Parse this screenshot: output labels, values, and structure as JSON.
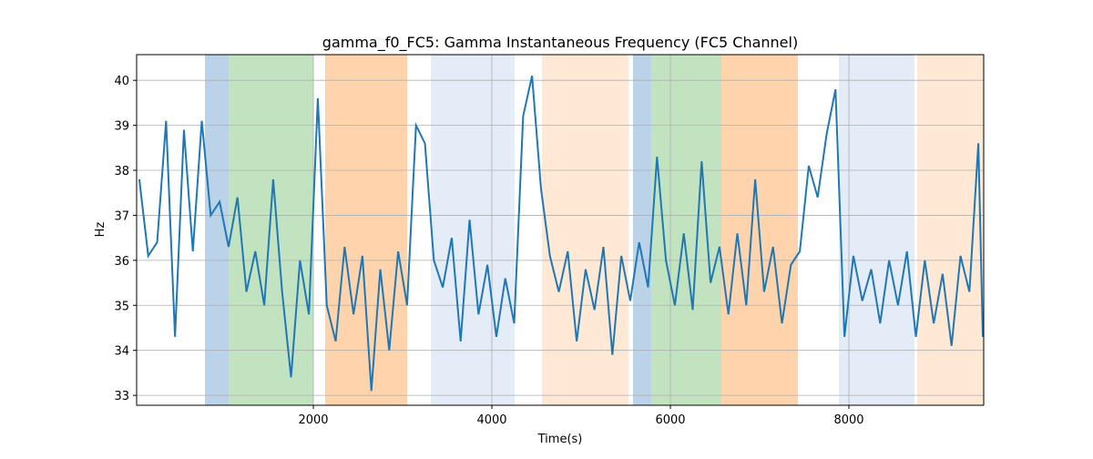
{
  "chart_data": {
    "type": "line",
    "title": "gamma_f0_FC5: Gamma Instantaneous Frequency (FC5 Channel)",
    "xlabel": "Time(s)",
    "ylabel": "Hz",
    "x": [
      50,
      150,
      250,
      350,
      450,
      550,
      650,
      750,
      850,
      950,
      1050,
      1150,
      1250,
      1350,
      1450,
      1550,
      1650,
      1750,
      1850,
      1950,
      2050,
      2150,
      2250,
      2350,
      2450,
      2550,
      2650,
      2750,
      2850,
      2950,
      3050,
      3150,
      3250,
      3350,
      3450,
      3550,
      3650,
      3750,
      3850,
      3950,
      4050,
      4150,
      4250,
      4350,
      4450,
      4550,
      4650,
      4750,
      4850,
      4950,
      5050,
      5150,
      5250,
      5350,
      5450,
      5550,
      5650,
      5750,
      5850,
      5950,
      6050,
      6150,
      6250,
      6350,
      6450,
      6550,
      6650,
      6750,
      6850,
      6950,
      7050,
      7150,
      7250,
      7350,
      7450,
      7550,
      7650,
      7750,
      7850,
      7950,
      8050,
      8150,
      8250,
      8350,
      8450,
      8550,
      8650,
      8750,
      8850,
      8950,
      9050,
      9150,
      9250,
      9350,
      9450,
      9500
    ],
    "series": [
      {
        "name": "gamma_f0_FC5",
        "color": "#1f77b4",
        "values": [
          37.8,
          36.1,
          36.4,
          39.1,
          34.3,
          38.9,
          36.2,
          39.1,
          37.0,
          37.3,
          36.3,
          37.4,
          35.3,
          36.2,
          35.0,
          37.8,
          35.3,
          33.4,
          36.0,
          34.8,
          39.6,
          35.0,
          34.2,
          36.3,
          34.8,
          36.1,
          33.1,
          35.8,
          34.0,
          36.2,
          35.0,
          39.0,
          38.6,
          36.0,
          35.4,
          36.5,
          34.2,
          36.9,
          34.8,
          35.9,
          34.3,
          35.6,
          34.6,
          39.2,
          40.1,
          37.6,
          36.1,
          35.3,
          36.2,
          34.2,
          35.8,
          34.9,
          36.3,
          33.9,
          36.1,
          35.1,
          36.4,
          35.4,
          38.3,
          36.0,
          35.0,
          36.6,
          34.9,
          38.2,
          35.5,
          36.3,
          34.8,
          36.6,
          35.0,
          37.8,
          35.3,
          36.3,
          34.6,
          35.9,
          36.2,
          38.1,
          37.4,
          38.8,
          39.8,
          34.3,
          36.1,
          35.1,
          35.8,
          34.6,
          36.0,
          35.0,
          36.2,
          34.3,
          36.0,
          34.6,
          35.7,
          34.1,
          36.1,
          35.3,
          38.6,
          34.3
        ]
      }
    ],
    "spans": [
      {
        "start": 785,
        "end": 1051,
        "color": "#bad3e9"
      },
      {
        "start": 1051,
        "end": 2000,
        "color": "#c1e3c0"
      },
      {
        "start": 2132,
        "end": 3050,
        "color": "#ffd4ad"
      },
      {
        "start": 3316,
        "end": 4255,
        "color": "#e4ecf7"
      },
      {
        "start": 4561,
        "end": 5530,
        "color": "#ffe9d4"
      },
      {
        "start": 5581,
        "end": 5785,
        "color": "#bad3e9"
      },
      {
        "start": 5785,
        "end": 6571,
        "color": "#c1e3c0"
      },
      {
        "start": 6571,
        "end": 7428,
        "color": "#ffd4ad"
      },
      {
        "start": 7887,
        "end": 8734,
        "color": "#e4ecf7"
      },
      {
        "start": 8765,
        "end": 9510,
        "color": "#ffe9d4"
      }
    ],
    "xlim": [
      20,
      9510
    ],
    "ylim": [
      32.78,
      40.57
    ],
    "xticks": [
      2000,
      4000,
      6000,
      8000
    ],
    "yticks": [
      33,
      34,
      35,
      36,
      37,
      38,
      39,
      40
    ],
    "grid": true
  }
}
